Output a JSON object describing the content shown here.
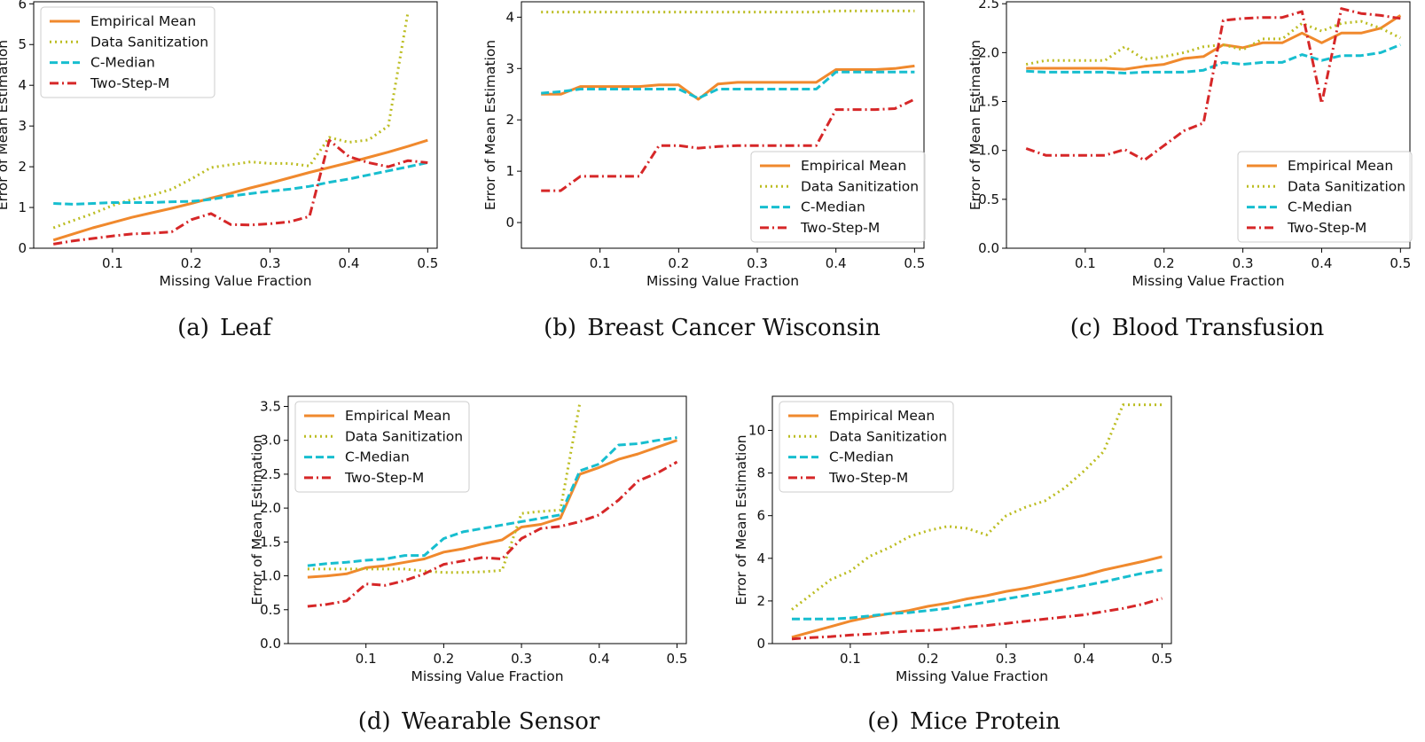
{
  "series_styles": [
    {
      "name": "Empirical Mean",
      "color": "#f0892d",
      "dash": "none"
    },
    {
      "name": "Data Sanitization",
      "color": "#bcbd22",
      "dash": "dotted"
    },
    {
      "name": "C-Median",
      "color": "#17becf",
      "dash": "dashed"
    },
    {
      "name": "Two-Step-M",
      "color": "#d62728",
      "dash": "dashdot"
    }
  ],
  "chart_data": [
    {
      "type": "line",
      "caption_label": "(a)",
      "caption_title": "Leaf",
      "xlabel": "Missing Value Fraction",
      "ylabel": "Error of Mean Estimation",
      "xlim": [
        0.0,
        0.512
      ],
      "ylim": [
        0,
        6.05
      ],
      "xticks": [
        "0.1",
        "0.2",
        "0.3",
        "0.4",
        "0.5"
      ],
      "yticks": [
        "0",
        "1",
        "2",
        "3",
        "4",
        "5",
        "6"
      ],
      "legend": "top-left",
      "x": [
        0.025,
        0.05,
        0.075,
        0.1,
        0.125,
        0.15,
        0.175,
        0.2,
        0.225,
        0.25,
        0.275,
        0.3,
        0.325,
        0.35,
        0.375,
        0.4,
        0.425,
        0.45,
        0.475,
        0.5
      ],
      "series": [
        {
          "name": "Empirical Mean",
          "values": [
            0.2,
            0.35,
            0.5,
            0.63,
            0.76,
            0.87,
            0.98,
            1.1,
            1.23,
            1.35,
            1.48,
            1.6,
            1.73,
            1.86,
            1.98,
            2.1,
            2.23,
            2.36,
            2.5,
            2.65
          ]
        },
        {
          "name": "Data Sanitization",
          "values": [
            0.5,
            0.68,
            0.85,
            1.05,
            1.2,
            1.3,
            1.45,
            1.7,
            1.98,
            2.05,
            2.12,
            2.08,
            2.08,
            2.02,
            2.72,
            2.6,
            2.66,
            3.0,
            5.8,
            null
          ]
        },
        {
          "name": "C-Median",
          "values": [
            1.1,
            1.08,
            1.1,
            1.12,
            1.12,
            1.12,
            1.14,
            1.15,
            1.2,
            1.28,
            1.34,
            1.4,
            1.45,
            1.52,
            1.62,
            1.7,
            1.8,
            1.9,
            2.0,
            2.1
          ]
        },
        {
          "name": "Two-Step-M",
          "values": [
            0.1,
            0.18,
            0.24,
            0.3,
            0.35,
            0.37,
            0.4,
            0.7,
            0.85,
            0.58,
            0.57,
            0.6,
            0.65,
            0.78,
            2.65,
            2.25,
            2.1,
            2.0,
            2.15,
            2.1
          ]
        }
      ]
    },
    {
      "type": "line",
      "caption_label": "(b)",
      "caption_title": "Breast Cancer Wisconsin",
      "xlabel": "Missing Value Fraction",
      "ylabel": "Error of Mean Estimation",
      "xlim": [
        0.0,
        0.512
      ],
      "ylim": [
        -0.5,
        4.3
      ],
      "xticks": [
        "0.1",
        "0.2",
        "0.3",
        "0.4",
        "0.5"
      ],
      "yticks": [
        "0",
        "1",
        "2",
        "3",
        "4"
      ],
      "legend": "lower-right",
      "x": [
        0.025,
        0.05,
        0.075,
        0.1,
        0.125,
        0.15,
        0.175,
        0.2,
        0.225,
        0.25,
        0.275,
        0.3,
        0.325,
        0.35,
        0.375,
        0.4,
        0.425,
        0.45,
        0.475,
        0.5
      ],
      "series": [
        {
          "name": "Empirical Mean",
          "values": [
            2.5,
            2.5,
            2.65,
            2.65,
            2.65,
            2.65,
            2.68,
            2.68,
            2.4,
            2.7,
            2.73,
            2.73,
            2.73,
            2.73,
            2.73,
            2.98,
            2.98,
            2.98,
            3.0,
            3.05
          ]
        },
        {
          "name": "Data Sanitization",
          "values": [
            4.1,
            4.1,
            4.1,
            4.1,
            4.1,
            4.1,
            4.1,
            4.1,
            4.1,
            4.1,
            4.1,
            4.1,
            4.1,
            4.1,
            4.1,
            4.12,
            4.12,
            4.12,
            4.12,
            4.12
          ]
        },
        {
          "name": "C-Median",
          "values": [
            2.52,
            2.55,
            2.6,
            2.6,
            2.6,
            2.6,
            2.6,
            2.6,
            2.42,
            2.6,
            2.6,
            2.6,
            2.6,
            2.6,
            2.6,
            2.93,
            2.93,
            2.93,
            2.93,
            2.93
          ]
        },
        {
          "name": "Two-Step-M",
          "values": [
            0.62,
            0.62,
            0.9,
            0.9,
            0.9,
            0.9,
            1.5,
            1.5,
            1.45,
            1.48,
            1.5,
            1.5,
            1.5,
            1.5,
            1.5,
            2.2,
            2.2,
            2.2,
            2.22,
            2.4
          ]
        }
      ]
    },
    {
      "type": "line",
      "caption_label": "(c)",
      "caption_title": "Blood Transfusion",
      "xlabel": "Missing Value Fraction",
      "ylabel": "Error of Mean Estimation",
      "xlim": [
        0.0,
        0.512
      ],
      "ylim": [
        0,
        2.52
      ],
      "xticks": [
        "0.1",
        "0.2",
        "0.3",
        "0.4",
        "0.5"
      ],
      "yticks": [
        "0.0",
        "0.5",
        "1.0",
        "1.5",
        "2.0",
        "2.5"
      ],
      "legend": "lower-right",
      "x": [
        0.025,
        0.05,
        0.075,
        0.1,
        0.125,
        0.15,
        0.175,
        0.2,
        0.225,
        0.25,
        0.275,
        0.3,
        0.325,
        0.35,
        0.375,
        0.4,
        0.425,
        0.45,
        0.475,
        0.5
      ],
      "series": [
        {
          "name": "Empirical Mean",
          "values": [
            1.84,
            1.84,
            1.84,
            1.84,
            1.84,
            1.83,
            1.86,
            1.88,
            1.94,
            1.96,
            2.08,
            2.05,
            2.1,
            2.1,
            2.2,
            2.1,
            2.2,
            2.2,
            2.25,
            2.38
          ]
        },
        {
          "name": "Data Sanitization",
          "values": [
            1.88,
            1.92,
            1.92,
            1.92,
            1.92,
            2.06,
            1.93,
            1.96,
            2.0,
            2.06,
            2.08,
            2.03,
            2.14,
            2.14,
            2.3,
            2.22,
            2.3,
            2.32,
            2.25,
            2.15
          ]
        },
        {
          "name": "C-Median",
          "values": [
            1.81,
            1.8,
            1.8,
            1.8,
            1.8,
            1.79,
            1.8,
            1.8,
            1.8,
            1.82,
            1.9,
            1.88,
            1.9,
            1.9,
            1.98,
            1.92,
            1.97,
            1.97,
            2.0,
            2.08
          ]
        },
        {
          "name": "Two-Step-M",
          "values": [
            1.02,
            0.95,
            0.95,
            0.95,
            0.95,
            1.01,
            0.9,
            1.05,
            1.2,
            1.28,
            2.33,
            2.35,
            2.36,
            2.36,
            2.42,
            1.48,
            2.45,
            2.4,
            2.38,
            2.35
          ]
        }
      ]
    },
    {
      "type": "line",
      "caption_label": "(d)",
      "caption_title": "Wearable Sensor",
      "xlabel": "Missing Value Fraction",
      "ylabel": "Error of Mean Estimation",
      "xlim": [
        0.0,
        0.512
      ],
      "ylim": [
        0,
        3.65
      ],
      "xticks": [
        "0.1",
        "0.2",
        "0.3",
        "0.4",
        "0.5"
      ],
      "yticks": [
        "0.0",
        "0.5",
        "1.0",
        "1.5",
        "2.0",
        "2.5",
        "3.0",
        "3.5"
      ],
      "legend": "top-left",
      "x": [
        0.025,
        0.05,
        0.075,
        0.1,
        0.125,
        0.15,
        0.175,
        0.2,
        0.225,
        0.25,
        0.275,
        0.3,
        0.325,
        0.35,
        0.375,
        0.4,
        0.425,
        0.45,
        0.475,
        0.5
      ],
      "series": [
        {
          "name": "Empirical Mean",
          "values": [
            0.98,
            1.0,
            1.03,
            1.12,
            1.15,
            1.2,
            1.25,
            1.35,
            1.4,
            1.47,
            1.53,
            1.72,
            1.76,
            1.85,
            2.5,
            2.6,
            2.72,
            2.8,
            2.9,
            3.0
          ]
        },
        {
          "name": "Data Sanitization",
          "values": [
            1.1,
            1.1,
            1.1,
            1.1,
            1.1,
            1.1,
            1.07,
            1.05,
            1.05,
            1.06,
            1.08,
            1.92,
            1.95,
            1.97,
            3.55,
            null,
            null,
            null,
            null,
            null
          ]
        },
        {
          "name": "C-Median",
          "values": [
            1.15,
            1.18,
            1.2,
            1.23,
            1.25,
            1.3,
            1.3,
            1.55,
            1.65,
            1.7,
            1.75,
            1.8,
            1.85,
            1.9,
            2.55,
            2.65,
            2.93,
            2.95,
            3.0,
            3.04
          ]
        },
        {
          "name": "Two-Step-M",
          "values": [
            0.55,
            0.58,
            0.63,
            0.88,
            0.86,
            0.93,
            1.03,
            1.17,
            1.22,
            1.27,
            1.25,
            1.55,
            1.7,
            1.73,
            1.8,
            1.9,
            2.12,
            2.4,
            2.52,
            2.68
          ]
        }
      ]
    },
    {
      "type": "line",
      "caption_label": "(e)",
      "caption_title": "Mice Protein",
      "xlabel": "Missing Value Fraction",
      "ylabel": "Error of Mean Estimation",
      "xlim": [
        0.0,
        0.512
      ],
      "ylim": [
        0,
        11.6
      ],
      "xticks": [
        "0.1",
        "0.2",
        "0.3",
        "0.4",
        "0.5"
      ],
      "yticks": [
        "0",
        "2",
        "4",
        "6",
        "8",
        "10"
      ],
      "legend": "top-left",
      "x": [
        0.025,
        0.05,
        0.075,
        0.1,
        0.125,
        0.15,
        0.175,
        0.2,
        0.225,
        0.25,
        0.275,
        0.3,
        0.325,
        0.35,
        0.375,
        0.4,
        0.425,
        0.45,
        0.475,
        0.5
      ],
      "series": [
        {
          "name": "Empirical Mean",
          "values": [
            0.3,
            0.55,
            0.8,
            1.05,
            1.25,
            1.4,
            1.55,
            1.75,
            1.9,
            2.1,
            2.25,
            2.45,
            2.6,
            2.8,
            3.0,
            3.2,
            3.45,
            3.65,
            3.85,
            4.08
          ]
        },
        {
          "name": "Data Sanitization",
          "values": [
            1.6,
            2.3,
            3.0,
            3.4,
            4.1,
            4.5,
            5.0,
            5.3,
            5.5,
            5.4,
            5.1,
            6.0,
            6.4,
            6.7,
            7.3,
            8.1,
            9.0,
            11.2,
            11.2,
            11.2
          ]
        },
        {
          "name": "C-Median",
          "values": [
            1.15,
            1.15,
            1.15,
            1.2,
            1.3,
            1.4,
            1.45,
            1.55,
            1.65,
            1.8,
            1.95,
            2.1,
            2.25,
            2.4,
            2.55,
            2.72,
            2.9,
            3.1,
            3.3,
            3.45
          ]
        },
        {
          "name": "Two-Step-M",
          "values": [
            0.22,
            0.28,
            0.33,
            0.4,
            0.45,
            0.52,
            0.58,
            0.62,
            0.68,
            0.78,
            0.85,
            0.95,
            1.05,
            1.15,
            1.25,
            1.35,
            1.5,
            1.65,
            1.85,
            2.12
          ]
        }
      ]
    }
  ]
}
